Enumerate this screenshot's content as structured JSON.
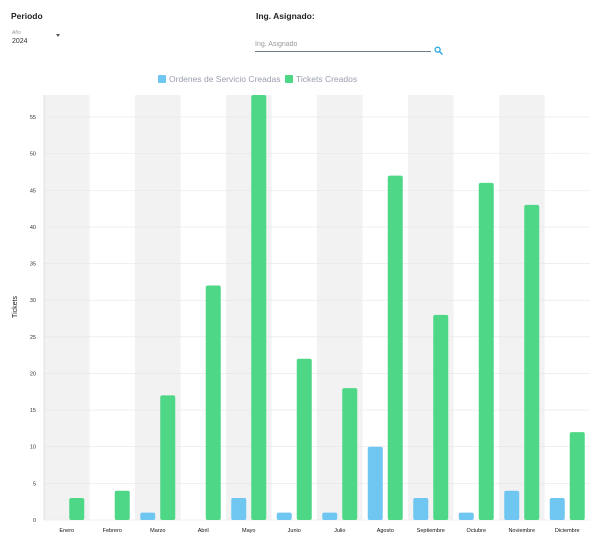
{
  "filters": {
    "period_label": "Periodo",
    "year_caption": "Año",
    "year_value": "2024",
    "engineer_label": "Ing. Asignado:",
    "engineer_placeholder": "Ing. Asignado",
    "engineer_value": ""
  },
  "colors": {
    "orders": "#6ec6f1",
    "tickets": "#4ed786",
    "band": "#f2f2f2",
    "grid": "#e6e6e6"
  },
  "chart_data": {
    "type": "bar",
    "title": "",
    "xlabel": "",
    "ylabel": "Tickets",
    "ylim": [
      0,
      58
    ],
    "yticks": [
      0,
      5,
      10,
      15,
      20,
      25,
      30,
      35,
      40,
      45,
      50,
      55
    ],
    "grid": true,
    "legend_position": "top",
    "categories": [
      "Enero",
      "Febrero",
      "Marzo",
      "Abril",
      "Mayo",
      "Junio",
      "Julio",
      "Agosto",
      "Septiembre",
      "Octubre",
      "Noviembre",
      "Diciembre"
    ],
    "series": [
      {
        "name": "Ordenes de Servicio Creadas",
        "color": "#6ec6f1",
        "values": [
          0,
          0,
          1,
          0,
          3,
          1,
          1,
          10,
          3,
          1,
          4,
          3
        ]
      },
      {
        "name": "Tickets Creados",
        "color": "#4ed786",
        "values": [
          3,
          4,
          17,
          32,
          58,
          22,
          18,
          47,
          28,
          46,
          43,
          12
        ]
      }
    ]
  }
}
